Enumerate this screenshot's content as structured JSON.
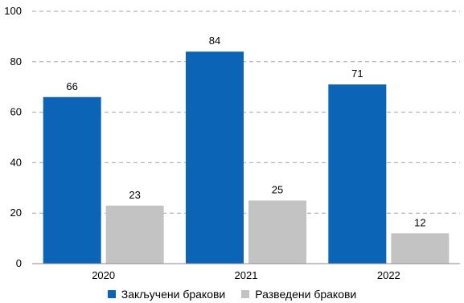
{
  "chart_data": {
    "type": "bar",
    "categories": [
      "2020",
      "2021",
      "2022"
    ],
    "series": [
      {
        "name": "Закључени бракови",
        "values": [
          66,
          84,
          71
        ],
        "color": "#0b64b5"
      },
      {
        "name": "Разведени бракови",
        "values": [
          23,
          25,
          12
        ],
        "color": "#c3c3c3"
      }
    ],
    "ylim": [
      0,
      100
    ],
    "yticks": [
      "0",
      "20",
      "40",
      "60",
      "80",
      "100"
    ],
    "grid": true,
    "legend_position": "bottom"
  }
}
